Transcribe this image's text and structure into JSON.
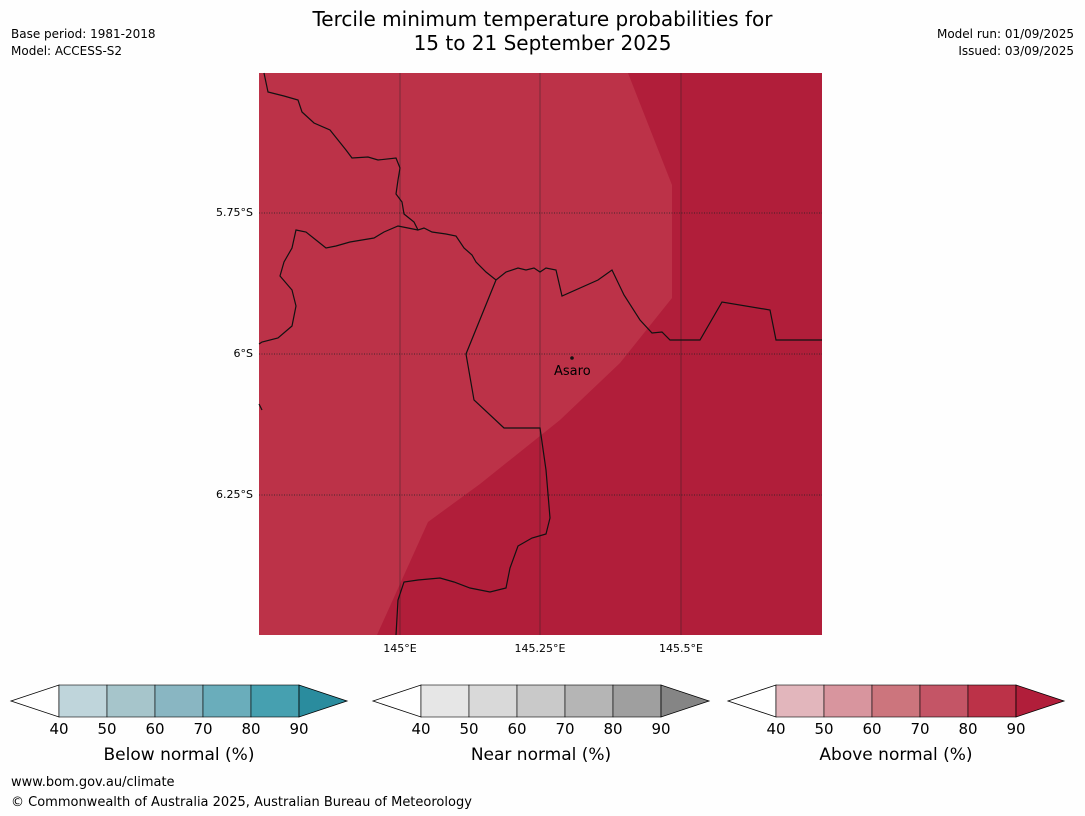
{
  "header": {
    "title_line1": "Tercile minimum temperature probabilities for",
    "title_line2": "15 to 21 September 2025",
    "base_period": "Base period: 1981-2018",
    "model": "Model: ACCESS-S2",
    "model_run": "Model run: 01/09/2025",
    "issued": "Issued: 03/09/2025"
  },
  "map": {
    "lat_labels": [
      "5.75°S",
      "6°S",
      "6.25°S"
    ],
    "lon_labels": [
      "145°E",
      "145.25°E",
      "145.5°E"
    ],
    "place": "Asaro",
    "region_colors": {
      "above_80_90": "#bc3248",
      "above_gt90": "#b11e3a"
    }
  },
  "colorbars": [
    {
      "title": "Below normal (%)",
      "ticks": [
        "40",
        "50",
        "60",
        "70",
        "80",
        "90"
      ],
      "colors": [
        "#bfd5db",
        "#a6c5cb",
        "#89b6c2",
        "#6aadbb",
        "#46a0b0",
        "#2a8c9e"
      ]
    },
    {
      "title": "Near normal (%)",
      "ticks": [
        "40",
        "50",
        "60",
        "70",
        "80",
        "90"
      ],
      "colors": [
        "#e6e6e6",
        "#d9d9d9",
        "#c9c9c9",
        "#b5b5b5",
        "#9f9f9f",
        "#858585"
      ]
    },
    {
      "title": "Above normal (%)",
      "ticks": [
        "40",
        "50",
        "60",
        "70",
        "80",
        "90"
      ],
      "colors": [
        "#e2b6bc",
        "#d8959e",
        "#cc757d",
        "#c45566",
        "#bc3248",
        "#b11e3a"
      ]
    }
  ],
  "footer": {
    "url": "www.bom.gov.au/climate",
    "copyright": "© Commonwealth of Australia 2025, Australian Bureau of Meteorology"
  }
}
